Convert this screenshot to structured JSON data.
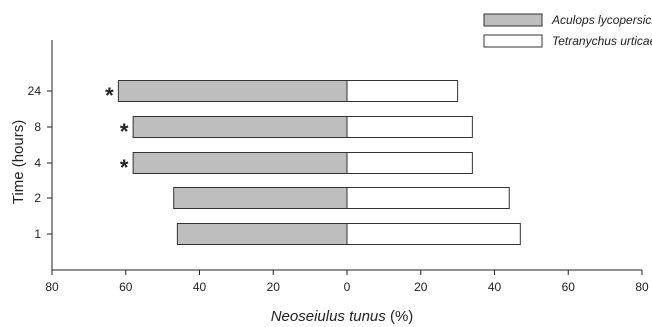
{
  "chart_data": {
    "type": "bar",
    "orientation": "horizontal",
    "layout": "back-to-back",
    "categories": [
      "24",
      "8",
      "4",
      "2",
      "1"
    ],
    "series": [
      {
        "name": "Aculops lycopersici",
        "values": [
          62,
          58,
          58,
          47,
          46
        ],
        "color": "#bebebe",
        "side": "left"
      },
      {
        "name": "Tetranychus urticae",
        "values": [
          30,
          34,
          34,
          44,
          47
        ],
        "color": "#ffffff",
        "side": "right"
      }
    ],
    "significance": [
      "*",
      "*",
      "*",
      "",
      ""
    ],
    "xlabel_main": "Neoseiulus tunus",
    "xlabel_unit": " (%)",
    "ylabel": "Time (hours)",
    "xlim": [
      -80,
      80
    ],
    "xticks": [
      -80,
      -60,
      -40,
      -20,
      0,
      20,
      40,
      60,
      80
    ],
    "xtick_labels": [
      "80",
      "60",
      "40",
      "20",
      "0",
      "20",
      "40",
      "60",
      "80"
    ],
    "legend_position": "top-right",
    "grid": false
  }
}
